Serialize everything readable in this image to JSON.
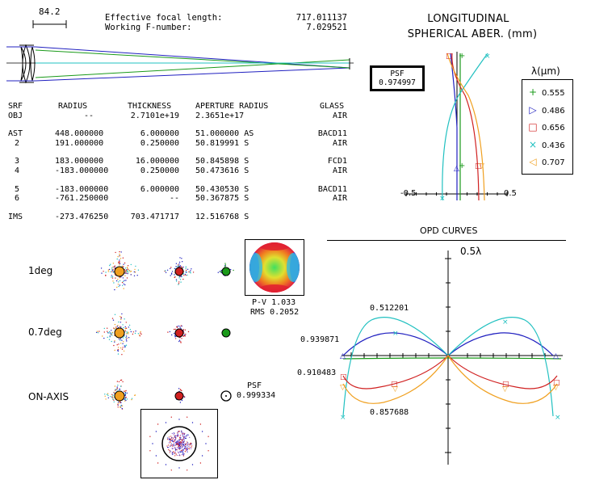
{
  "scale_bar": {
    "label": "84.2"
  },
  "header": {
    "efl_label": "Effective focal length:",
    "efl_value": "717.011137",
    "fnum_label": "Working F-number:",
    "fnum_value": "7.029521"
  },
  "lens_table": {
    "headers": [
      "SRF",
      "RADIUS",
      "THICKNESS",
      "APERTURE RADIUS",
      "GLASS"
    ],
    "groups": [
      [
        [
          "OBJ",
          "--",
          "2.7101e+19",
          "2.3651e+17",
          "AIR"
        ]
      ],
      [
        [
          "AST",
          "448.000000",
          "6.000000",
          "51.000000 AS",
          "BACD11"
        ],
        [
          "2",
          "191.000000",
          "0.250000",
          "50.819991 S",
          "AIR"
        ]
      ],
      [
        [
          "3",
          "183.000000",
          "16.000000",
          "50.845898 S",
          "FCD1"
        ],
        [
          "4",
          "-183.000000",
          "0.250000",
          "50.473616 S",
          "AIR"
        ]
      ],
      [
        [
          "5",
          "-183.000000",
          "6.000000",
          "50.430530 S",
          "BACD11"
        ],
        [
          "6",
          "-761.250000",
          "--",
          "50.367875 S",
          "AIR"
        ]
      ],
      [
        [
          "IMS",
          "-273.476250",
          "703.471717",
          "12.516768 S",
          ""
        ]
      ]
    ]
  },
  "spherical": {
    "title_line1": "LONGITUDINAL",
    "title_line2": "SPHERICAL ABER. (mm)",
    "psf_label": "PSF",
    "psf_value": "0.974997",
    "axis_min_label": "-0.5",
    "axis_max_label": "0.5",
    "legend_title": "λ(μm)",
    "legend": [
      {
        "marker": "+",
        "label": "0.555",
        "color": "#1a9a1a"
      },
      {
        "marker": "▷",
        "label": "0.486",
        "color": "#2020c0"
      },
      {
        "marker": "□",
        "label": "0.656",
        "color": "#d02020"
      },
      {
        "marker": "×",
        "label": "0.436",
        "color": "#20c0c0"
      },
      {
        "marker": "◁",
        "label": "0.707",
        "color": "#f0a020"
      }
    ]
  },
  "opd": {
    "title": "OPD CURVES",
    "scale_label": "0.5λ",
    "labels": [
      "0.512201",
      "0.939871",
      "0.910483",
      "0.857688"
    ]
  },
  "spots": {
    "fields": [
      "1deg",
      "0.7deg",
      "ON-AXIS"
    ],
    "pv_label": "P-V 1.033",
    "rms_label": "RMS 0.2052",
    "psf_label": "PSF",
    "psf_value": "0.999334"
  },
  "colors": {
    "green": "#1a9a1a",
    "blue": "#2020c0",
    "red": "#d02020",
    "cyan": "#20c0c0",
    "orange": "#f0a020"
  }
}
